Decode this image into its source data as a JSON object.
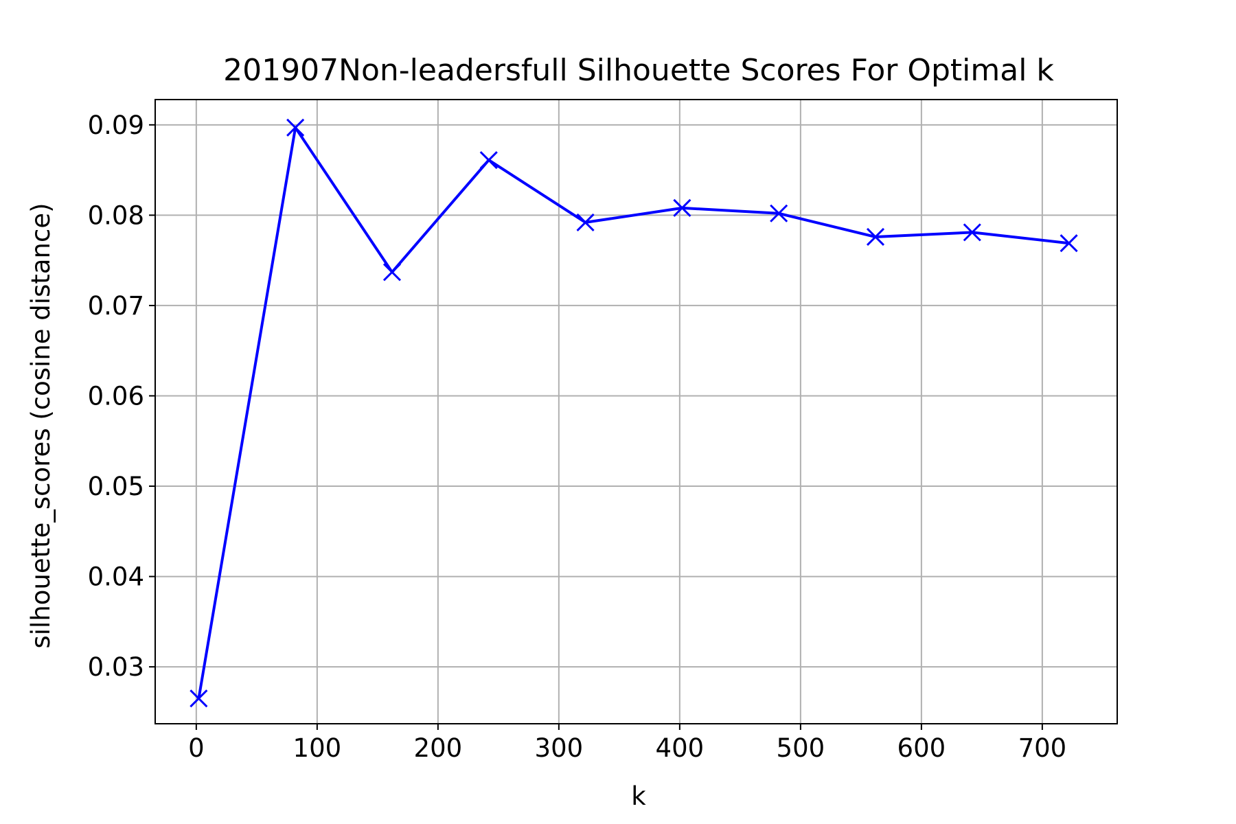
{
  "chart_data": {
    "type": "line",
    "title": "201907Non-leadersfull Silhouette Scores For Optimal k",
    "xlabel": "k",
    "ylabel": "silhouette_scores (cosine distance)",
    "xlim": [
      -34,
      762
    ],
    "ylim": [
      0.0237,
      0.0928
    ],
    "xticks": [
      0,
      100,
      200,
      300,
      400,
      500,
      600,
      700
    ],
    "xtick_labels": [
      "0",
      "100",
      "200",
      "300",
      "400",
      "500",
      "600",
      "700"
    ],
    "yticks": [
      0.03,
      0.04,
      0.05,
      0.06,
      0.07,
      0.08,
      0.09
    ],
    "ytick_labels": [
      "0.03",
      "0.04",
      "0.05",
      "0.06",
      "0.07",
      "0.08",
      "0.09"
    ],
    "grid": true,
    "marker": "x",
    "series": [
      {
        "x": [
          2,
          82,
          162,
          242,
          322,
          402,
          482,
          562,
          642,
          722
        ],
        "y": [
          0.0265,
          0.0897,
          0.0737,
          0.0861,
          0.0792,
          0.0808,
          0.0802,
          0.0776,
          0.0781,
          0.0769
        ],
        "color": "#0000ff"
      }
    ]
  }
}
